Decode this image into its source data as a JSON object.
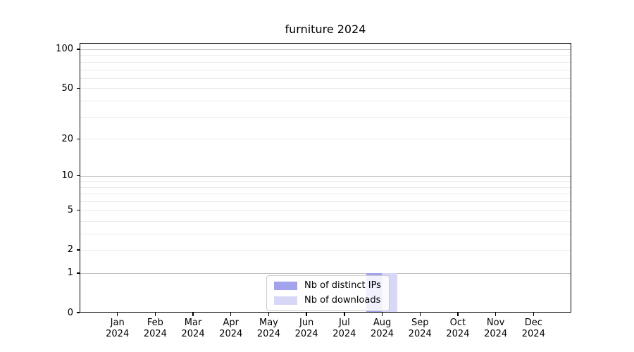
{
  "chart_data": {
    "type": "bar",
    "title": "furniture 2024",
    "categories": [
      "Jan",
      "Feb",
      "Mar",
      "Apr",
      "May",
      "Jun",
      "Jul",
      "Aug",
      "Sep",
      "Oct",
      "Nov",
      "Dec"
    ],
    "category_year": "2024",
    "series": [
      {
        "name": "Nb of distinct IPs",
        "color": "#a2a2ee",
        "values": [
          0,
          0,
          0,
          0,
          0,
          0,
          0,
          1,
          0,
          0,
          0,
          0
        ]
      },
      {
        "name": "Nb of downloads",
        "color": "#d7d7f7",
        "values": [
          0,
          0,
          0,
          0,
          0,
          0,
          0,
          1,
          0,
          0,
          0,
          0
        ]
      }
    ],
    "y_axis": {
      "scale": "log1p",
      "tick_values": [
        0,
        1,
        2,
        5,
        10,
        20,
        50,
        100
      ],
      "major_gridlines": [
        1,
        10,
        100
      ],
      "minor_gridlines": [
        2,
        3,
        4,
        5,
        6,
        7,
        8,
        9,
        20,
        30,
        40,
        50,
        60,
        70,
        80,
        90
      ],
      "range_top_value": 112
    },
    "legend": {
      "position": "bottom-center"
    },
    "grid": true
  },
  "colors": {
    "background": "#ffffff",
    "axis": "#000000",
    "text": "#000000",
    "major_grid": "#c2c2c2",
    "minor_grid": "#eaeaea",
    "legend_border": "#cccccc"
  }
}
